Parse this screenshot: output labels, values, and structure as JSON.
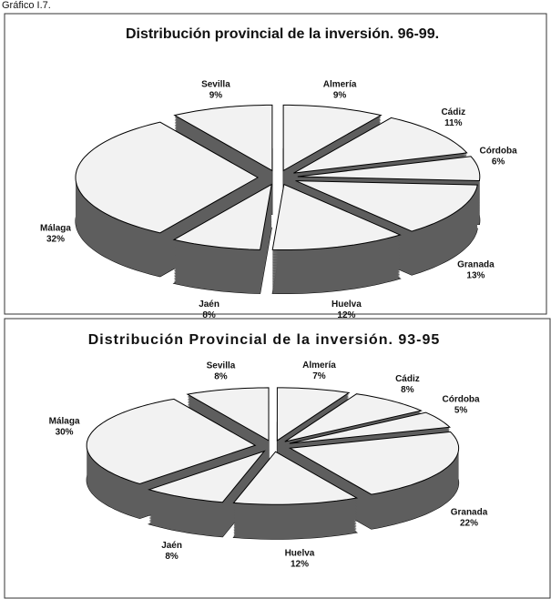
{
  "caption": "Gráfico I.7.",
  "chart_data": [
    {
      "type": "pie",
      "title": "Distribución provincial de la inversión. 96-99.",
      "categories": [
        "Almería",
        "Cádiz",
        "Córdoba",
        "Granada",
        "Huelva",
        "Jaén",
        "Málaga",
        "Sevilla"
      ],
      "values": [
        9,
        11,
        6,
        13,
        12,
        8,
        32,
        9
      ],
      "value_labels": [
        "9%",
        "11%",
        "6%",
        "13%",
        "12%",
        "8%",
        "32%",
        "9%"
      ],
      "color": "#f2f2f2",
      "side_color": "#5e5e5e"
    },
    {
      "type": "pie",
      "title": "Distribución Provincial de la inversión. 93-95",
      "categories": [
        "Almería",
        "Cádiz",
        "Córdoba",
        "Granada",
        "Huelva",
        "Jaén",
        "Málaga",
        "Sevilla"
      ],
      "values": [
        7,
        8,
        5,
        22,
        12,
        8,
        30,
        8
      ],
      "value_labels": [
        "7%",
        "8%",
        "5%",
        "22%",
        "12%",
        "8%",
        "30%",
        "8%"
      ],
      "color": "#f2f2f2",
      "side_color": "#5e5e5e"
    }
  ]
}
